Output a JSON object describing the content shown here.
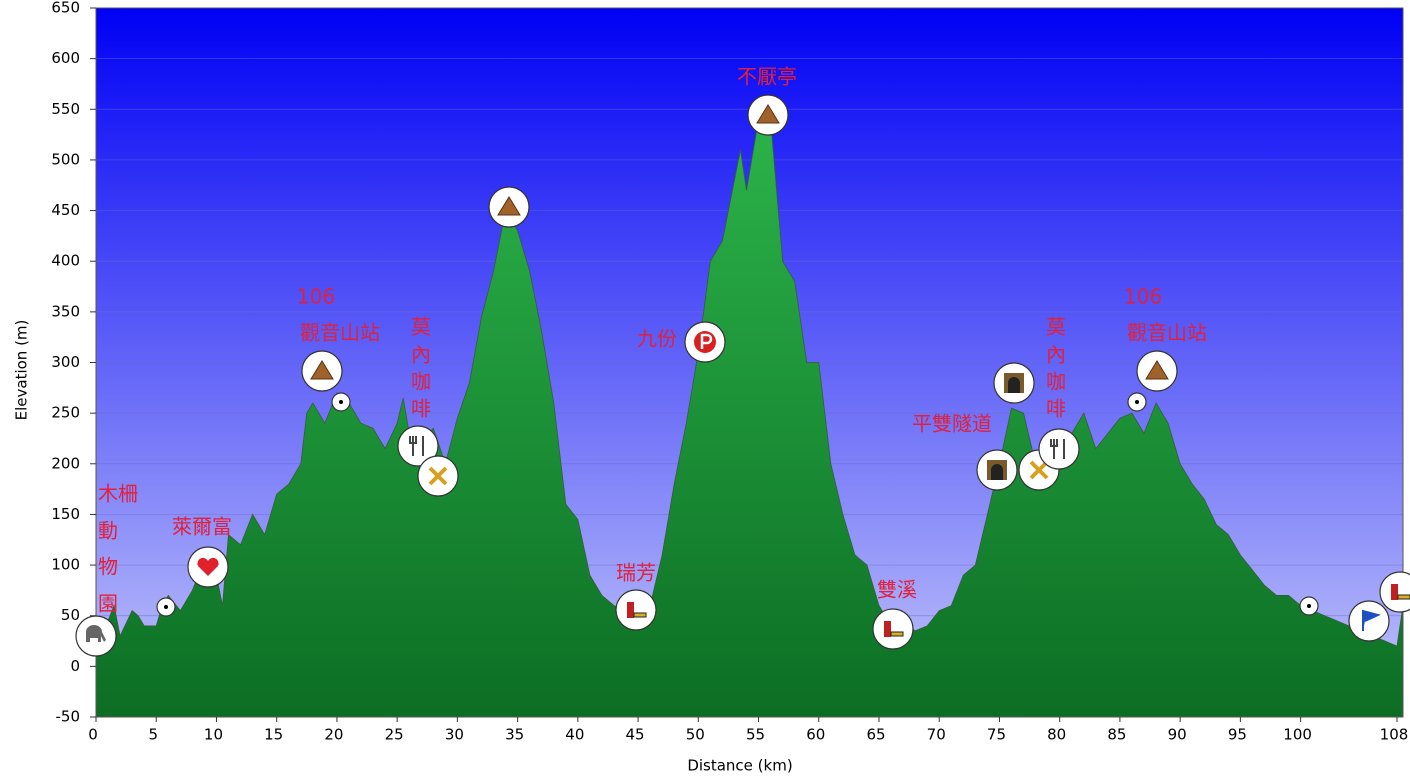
{
  "chart_data": {
    "type": "area",
    "x_label": "Distance   (km)",
    "y_label": "Elevation (m)",
    "xlim": [
      0,
      108.5
    ],
    "ylim": [
      -50,
      650
    ],
    "xticks": [
      0,
      5,
      10,
      15,
      20,
      25,
      30,
      35,
      40,
      45,
      50,
      55,
      60,
      65,
      70,
      75,
      80,
      85,
      90,
      95,
      100,
      108
    ],
    "yticks": [
      -50,
      0,
      50,
      100,
      150,
      200,
      250,
      300,
      350,
      400,
      450,
      500,
      550,
      600,
      650
    ],
    "grid": true,
    "color": "#1f9a3c",
    "x": [
      0,
      1,
      1.5,
      2,
      3,
      3.5,
      4,
      5,
      5.5,
      6,
      7,
      8,
      8.5,
      9,
      10,
      10.5,
      11,
      12,
      13,
      14,
      15,
      16,
      17,
      17.5,
      18,
      19,
      20,
      21,
      22,
      23,
      24,
      25,
      25.5,
      26,
      27,
      28,
      29,
      30,
      31,
      32,
      33,
      34,
      35,
      36,
      37,
      38,
      39,
      40,
      41,
      42,
      43,
      44,
      45,
      46,
      47,
      48,
      49,
      50,
      51,
      52,
      53,
      53.5,
      54,
      55,
      56,
      57,
      58,
      59,
      60,
      61,
      62,
      63,
      64,
      65,
      66,
      67,
      68,
      69,
      70,
      71,
      72,
      73,
      74,
      75,
      76,
      77,
      78,
      79,
      80,
      81,
      82,
      83,
      84,
      85,
      86,
      87,
      88,
      89,
      90,
      91,
      92,
      93,
      94,
      95,
      96,
      97,
      98,
      99,
      100,
      101,
      102,
      103,
      104,
      105,
      106,
      107,
      108,
      108.5
    ],
    "values": [
      40,
      45,
      60,
      30,
      55,
      50,
      40,
      40,
      60,
      70,
      55,
      75,
      90,
      80,
      90,
      60,
      130,
      120,
      150,
      130,
      170,
      180,
      200,
      250,
      260,
      240,
      270,
      260,
      240,
      235,
      215,
      240,
      265,
      230,
      220,
      235,
      200,
      245,
      280,
      345,
      390,
      450,
      430,
      390,
      330,
      260,
      160,
      145,
      90,
      70,
      60,
      55,
      55,
      60,
      110,
      180,
      240,
      310,
      400,
      420,
      480,
      510,
      470,
      540,
      540,
      400,
      380,
      300,
      300,
      200,
      150,
      110,
      100,
      60,
      40,
      45,
      35,
      40,
      55,
      60,
      90,
      100,
      150,
      200,
      255,
      250,
      200,
      195,
      220,
      230,
      250,
      215,
      230,
      245,
      250,
      230,
      260,
      240,
      200,
      180,
      165,
      140,
      130,
      110,
      95,
      80,
      70,
      70,
      60,
      55,
      50,
      45,
      40,
      45,
      30,
      25,
      20,
      60
    ],
    "annotations": [
      [
        "木柵",
        "動",
        "物",
        "園"
      ],
      [
        "萊爾富"
      ],
      [
        "106",
        "觀音山站"
      ],
      [
        "莫",
        "內",
        "咖",
        "啡"
      ],
      [
        "九份"
      ],
      [
        "不厭亭"
      ],
      [
        "瑞芳"
      ],
      [
        "雙溪"
      ],
      [
        "平雙隧道"
      ],
      [
        "莫",
        "內",
        "咖",
        "啡"
      ],
      [
        "106",
        "觀音山站"
      ]
    ]
  }
}
